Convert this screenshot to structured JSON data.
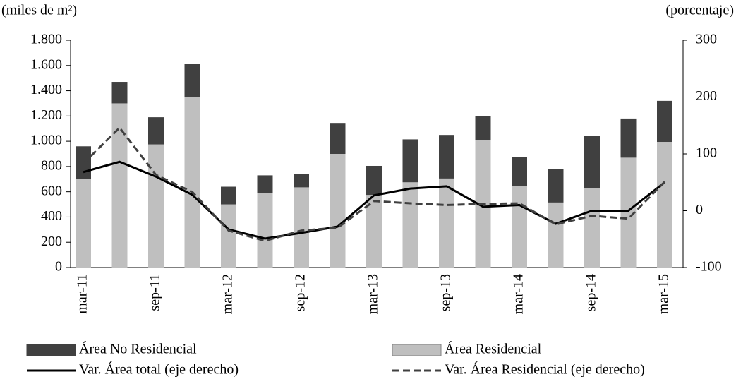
{
  "chart_data": {
    "type": "bar",
    "stacked": true,
    "y_label": "(miles  de m²)",
    "y2_label": "(porcentaje)",
    "categories": [
      "mar-11",
      null,
      "sep-11",
      null,
      "mar-12",
      null,
      "sep-12",
      null,
      "mar-13",
      null,
      "sep-13",
      null,
      "mar-14",
      null,
      "sep-14",
      null,
      "mar-15"
    ],
    "series": [
      {
        "name": "Área No Residencial",
        "type": "bar",
        "color": "#404040",
        "values": [
          260,
          170,
          215,
          260,
          140,
          140,
          105,
          245,
          230,
          340,
          345,
          190,
          230,
          265,
          410,
          310,
          325
        ]
      },
      {
        "name": "Área Residencial",
        "type": "bar",
        "color": "#bfbfbf",
        "values": [
          700,
          1300,
          975,
          1350,
          500,
          590,
          635,
          900,
          575,
          675,
          705,
          1010,
          645,
          515,
          630,
          870,
          995
        ]
      },
      {
        "name": "Var. Área total (eje derecho)",
        "type": "line",
        "axis": "y2",
        "color": "#000000",
        "dashed": false,
        "values": [
          68,
          86,
          60,
          28,
          -33,
          -49,
          -39,
          -28,
          27,
          39,
          43,
          7,
          10,
          -23,
          0,
          0,
          50
        ]
      },
      {
        "name": "Var. Área Residencial (eje derecho)",
        "type": "line",
        "axis": "y2",
        "color": "#404040",
        "dashed": true,
        "values": [
          83,
          146,
          63,
          33,
          -35,
          -53,
          -35,
          -30,
          17,
          13,
          10,
          12,
          13,
          -24,
          -9,
          -14,
          51
        ]
      }
    ],
    "ylim": [
      0,
      1800
    ],
    "yticks": [
      0,
      200,
      400,
      600,
      800,
      {
        "value": 1000,
        "label": "1.000"
      },
      {
        "value": 1200,
        "label": "1.200"
      },
      {
        "value": 1400,
        "label": "1.400"
      },
      {
        "value": 1600,
        "label": "1.600"
      },
      {
        "value": 1800,
        "label": "1.800"
      }
    ],
    "y2lim": [
      -100,
      300
    ],
    "y2ticks": [
      -100,
      0,
      100,
      200,
      300
    ],
    "grid": false
  }
}
